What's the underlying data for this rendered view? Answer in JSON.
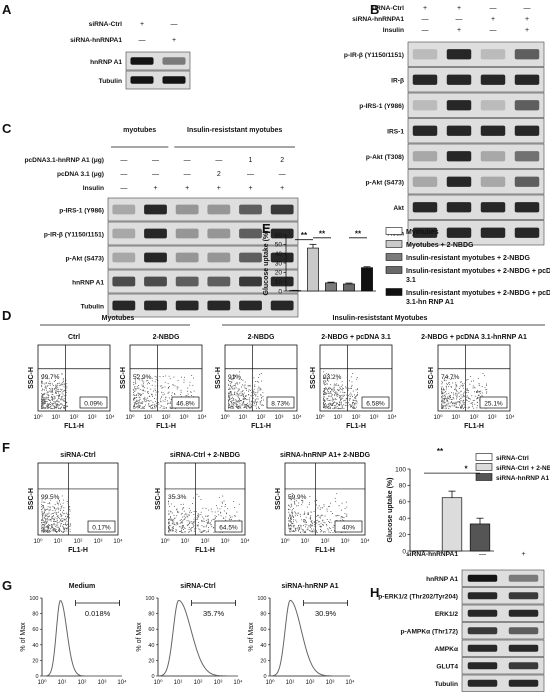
{
  "panels": {
    "A": {
      "letter": "A",
      "conditions": [
        {
          "label": "siRNA-Ctrl",
          "values": [
            "+",
            "—"
          ]
        },
        {
          "label": "siRNA-hnRNPA1",
          "values": [
            "—",
            "+"
          ]
        }
      ],
      "blots": [
        {
          "label": "hnRNP A1",
          "intensity": [
            1.0,
            0.45
          ]
        },
        {
          "label": "Tubulin",
          "intensity": [
            1.0,
            1.0
          ]
        }
      ]
    },
    "B": {
      "letter": "B",
      "conditions": [
        {
          "label": "siRNA-Ctrl",
          "values": [
            "+",
            "+",
            "—",
            "—"
          ]
        },
        {
          "label": "siRNA-hnRNPA1",
          "values": [
            "—",
            "—",
            "+",
            "+"
          ]
        },
        {
          "label": "Insulin",
          "values": [
            "—",
            "+",
            "—",
            "+"
          ]
        }
      ],
      "blots": [
        {
          "label": "p-IR-β (Y1150/1151)",
          "intensity": [
            0.1,
            0.9,
            0.1,
            0.6
          ]
        },
        {
          "label": "IR-β",
          "intensity": [
            0.9,
            0.9,
            0.9,
            0.9
          ]
        },
        {
          "label": "p-IRS-1 (Y986)",
          "intensity": [
            0.1,
            0.9,
            0.1,
            0.6
          ]
        },
        {
          "label": "IRS-1",
          "intensity": [
            0.9,
            0.9,
            0.9,
            0.9
          ]
        },
        {
          "label": "p-Akt (T308)",
          "intensity": [
            0.2,
            0.9,
            0.2,
            0.5
          ]
        },
        {
          "label": "p-Akt (S473)",
          "intensity": [
            0.2,
            0.9,
            0.2,
            0.6
          ]
        },
        {
          "label": "Akt",
          "intensity": [
            0.9,
            0.9,
            0.9,
            0.9
          ]
        },
        {
          "label": "Actin",
          "intensity": [
            0.9,
            0.9,
            0.9,
            0.9
          ]
        }
      ]
    },
    "C": {
      "letter": "C",
      "group1": "myotubes",
      "group2": "Insulin-resiststant myotubes",
      "conditions": [
        {
          "label": "pcDNA3.1-hnRNP A1 (μg)",
          "values": [
            "—",
            "—",
            "—",
            "—",
            "1",
            "2"
          ]
        },
        {
          "label": "pcDNA 3.1 (μg)",
          "values": [
            "—",
            "—",
            "—",
            "2",
            "—",
            "—"
          ]
        },
        {
          "label": "Insulin",
          "values": [
            "—",
            "+",
            "+",
            "+",
            "+",
            "+"
          ]
        }
      ],
      "blots": [
        {
          "label": "p-IRS-1 (Y986)",
          "intensity": [
            0.2,
            0.9,
            0.3,
            0.3,
            0.6,
            0.8
          ]
        },
        {
          "label": "p-IR-β (Y1150/1151)",
          "intensity": [
            0.2,
            0.9,
            0.3,
            0.3,
            0.6,
            0.9
          ]
        },
        {
          "label": "p-Akt (S473)",
          "intensity": [
            0.2,
            0.9,
            0.3,
            0.3,
            0.6,
            0.9
          ]
        },
        {
          "label": "hnRNP A1",
          "intensity": [
            0.7,
            0.7,
            0.6,
            0.6,
            0.8,
            0.9
          ]
        },
        {
          "label": "Tubulin",
          "intensity": [
            0.9,
            0.9,
            0.9,
            0.9,
            0.9,
            0.9
          ]
        }
      ]
    },
    "E": {
      "letter": "E",
      "sig": [
        "**",
        "**",
        "**"
      ]
    },
    "D": {
      "letter": "D",
      "header_left": "Myotubes",
      "header_right": "Insulin-resiststant  Myotubes",
      "x_axis_label": "FL1-H",
      "y_axis_label": "SSC-H",
      "ticks": [
        "10⁰",
        "10¹",
        "10²",
        "10³",
        "10⁴"
      ],
      "plots": [
        {
          "title": "Ctrl",
          "ul": "99.7%",
          "lr": "0.09%",
          "spread": 0.1
        },
        {
          "title": "2-NBDG",
          "ul": "52.9%",
          "lr": "46.8%",
          "spread": 0.9
        },
        {
          "title": "2-NBDG",
          "ul": "91%",
          "lr": "8.73%",
          "spread": 0.3
        },
        {
          "title": "2-NBDG + pcDNA 3.1",
          "ul": "93.2%",
          "lr": "6.58%",
          "spread": 0.28
        },
        {
          "title": "2-NBDG + pcDNA 3.1-hnRNP A1",
          "ul": "74.7%",
          "lr": "25.1%",
          "spread": 0.55
        }
      ]
    },
    "F": {
      "letter": "F",
      "x_axis_label": "FL1-H",
      "y_axis_label": "SSC-H",
      "ticks": [
        "10⁰",
        "10¹",
        "10²",
        "10³",
        "10⁴"
      ],
      "plots": [
        {
          "title": "siRNA-Ctrl",
          "ul": "99.5%",
          "lr": "0.17%",
          "spread": 0.1
        },
        {
          "title": "siRNA-Ctrl + 2-NBDG",
          "ul": "35.3%",
          "lr": "64.5%",
          "spread": 0.95
        },
        {
          "title": "siRNA-hnRNP A1+ 2-NBDG",
          "ul": "59.9%",
          "lr": "40%",
          "spread": 0.7
        }
      ],
      "sig": [
        "**",
        "*"
      ]
    },
    "G": {
      "letter": "G",
      "y_axis_label": "% of Max",
      "yticks": [
        "0",
        "20",
        "40",
        "60",
        "80",
        "100"
      ],
      "xticks": [
        "10⁰",
        "10¹",
        "10²",
        "10³",
        "10⁴"
      ],
      "plots": [
        {
          "title": "Medium",
          "gate": "0.018%",
          "shift": 0.0
        },
        {
          "title": "siRNA-Ctrl",
          "gate": "35.7%",
          "shift": 0.35
        },
        {
          "title": "siRNA-hnRNP  A1",
          "gate": "30.9%",
          "shift": 0.28
        }
      ]
    },
    "H": {
      "letter": "H",
      "conditions": [
        {
          "label": "siRNA-hnRNPA1",
          "values": [
            "—",
            "+"
          ]
        }
      ],
      "blots": [
        {
          "label": "hnRNP A1",
          "intensity": [
            1.0,
            0.45
          ]
        },
        {
          "label": "p-ERK1/2 (Thr202/Tyr204)",
          "intensity": [
            0.9,
            0.8
          ]
        },
        {
          "label": "ERK1/2",
          "intensity": [
            0.9,
            0.9
          ]
        },
        {
          "label": "p-AMPKα (Thr172)",
          "intensity": [
            0.8,
            0.6
          ]
        },
        {
          "label": "AMPKα",
          "intensity": [
            0.9,
            0.9
          ]
        },
        {
          "label": "GLUT4",
          "intensity": [
            0.9,
            0.8
          ]
        },
        {
          "label": "Tubulin",
          "intensity": [
            0.9,
            0.9
          ]
        }
      ]
    }
  },
  "chart_data": [
    {
      "type": "bar",
      "panel": "E",
      "ylabel": "Glucose uptake (%)",
      "ylim": [
        0,
        60
      ],
      "yticks": [
        0,
        10,
        20,
        30,
        40,
        50,
        60
      ],
      "categories": [
        "Myotubes",
        "Myotubes + 2-NBDG",
        "Insulin-resistant myotubes + 2-NBDG",
        "Insulin-resistant myotubes + 2-NBDG + pcDNA 3.1",
        "Insulin-resistant myotubes + 2-NBDG + pcDNA 3.1-hn RNP A1"
      ],
      "values": [
        0.5,
        46,
        8.7,
        7.5,
        25
      ],
      "errors": [
        0.2,
        4,
        0.8,
        1,
        1
      ],
      "colors": [
        "#ffffff",
        "#c9c9c9",
        "#7b7b7b",
        "#6a6a6a",
        "#111111"
      ],
      "legend_position": "right",
      "grid": false
    },
    {
      "type": "bar",
      "panel": "F",
      "ylabel": "Glucose uptake (%)",
      "ylim": [
        0,
        100
      ],
      "yticks": [
        0,
        20,
        40,
        60,
        80,
        100
      ],
      "categories": [
        "siRNA-Ctrl",
        "siRNA-Ctrl + 2-NBDG",
        "siRNA-hnRNP A1 + 2-NBDG"
      ],
      "values": [
        0.2,
        65,
        33
      ],
      "errors": [
        0.1,
        8,
        7
      ],
      "colors": [
        "#ffffff",
        "#dcdcdc",
        "#555555"
      ],
      "legend_position": "top-right",
      "grid": false
    }
  ]
}
